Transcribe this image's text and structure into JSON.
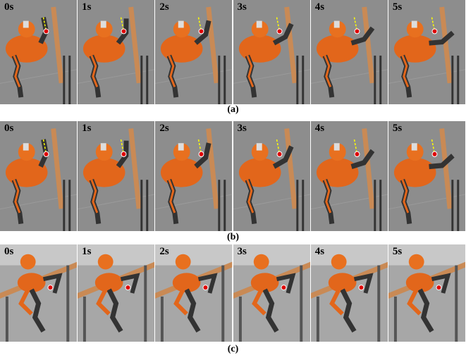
{
  "rows": [
    {
      "frames": [
        "0s",
        "1s",
        "2s",
        "3s",
        "4s",
        "5s"
      ],
      "caption": "(a)"
    },
    {
      "frames": [
        "0s",
        "1s",
        "2s",
        "3s",
        "4s",
        "5s"
      ],
      "caption": "(b)"
    },
    {
      "frames": [
        "0s",
        "1s",
        "2s",
        "3s",
        "4s",
        "5s"
      ],
      "caption": "(c)"
    }
  ]
}
